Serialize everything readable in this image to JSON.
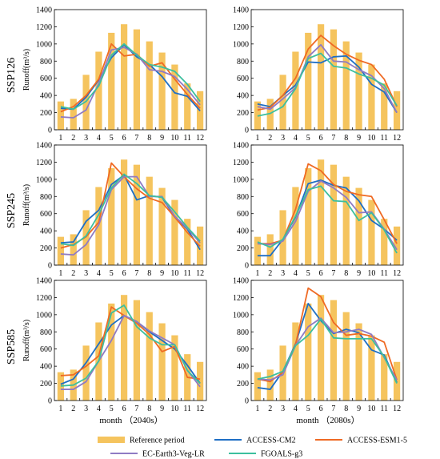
{
  "row_labels": [
    "SSP126",
    "SSP245",
    "SSP585"
  ],
  "ylabel": "Runoff(m³/s)",
  "xlabels": [
    "month  （2040s）",
    "month  （2080s）"
  ],
  "yticks": [
    "0",
    "200",
    "400",
    "600",
    "800",
    "1000",
    "1200",
    "1400"
  ],
  "xticks": [
    "1",
    "2",
    "3",
    "4",
    "5",
    "6",
    "7",
    "8",
    "9",
    "10",
    "11",
    "12"
  ],
  "legend": [
    "Reference period",
    "ACCESS-CM2",
    "ACCESS-ESM1-5",
    "EC-Earth3-Veg-LR",
    "FGOALS-g3"
  ],
  "colors": {
    "reference": "#f5c45e",
    "ACCESS-CM2": "#1f6fc5",
    "ACCESS-ESM1-5": "#ef6a24",
    "EC-Earth3-Veg-LR": "#8f7bc4",
    "FGOALS-g3": "#3dbf9e"
  },
  "chart_data": [
    {
      "type": "bar+line",
      "scenario": "SSP126",
      "period": "2040s",
      "ylim": [
        0,
        1400
      ],
      "categories": [
        1,
        2,
        3,
        4,
        5,
        6,
        7,
        8,
        9,
        10,
        11,
        12
      ],
      "bars": [
        330,
        360,
        640,
        910,
        1130,
        1230,
        1170,
        1030,
        900,
        760,
        540,
        450
      ],
      "series": [
        {
          "name": "ACCESS-CM2",
          "values": [
            250,
            240,
            380,
            580,
            840,
            990,
            850,
            760,
            620,
            430,
            390,
            220
          ]
        },
        {
          "name": "ACCESS-ESM1-5",
          "values": [
            210,
            270,
            400,
            590,
            1000,
            860,
            880,
            740,
            780,
            590,
            410,
            250
          ]
        },
        {
          "name": "EC-Earth3-Veg-LR",
          "values": [
            150,
            140,
            230,
            540,
            930,
            960,
            880,
            700,
            680,
            620,
            470,
            290
          ]
        },
        {
          "name": "FGOALS-g3",
          "values": [
            270,
            240,
            330,
            510,
            870,
            1000,
            870,
            760,
            730,
            680,
            530,
            330
          ]
        }
      ]
    },
    {
      "type": "bar+line",
      "scenario": "SSP126",
      "period": "2080s",
      "ylim": [
        0,
        1400
      ],
      "categories": [
        1,
        2,
        3,
        4,
        5,
        6,
        7,
        8,
        9,
        10,
        11,
        12
      ],
      "bars": [
        330,
        360,
        640,
        910,
        1130,
        1230,
        1170,
        1030,
        900,
        760,
        540,
        450
      ],
      "series": [
        {
          "name": "ACCESS-CM2",
          "values": [
            300,
            270,
            400,
            520,
            790,
            780,
            850,
            860,
            730,
            530,
            440,
            200
          ]
        },
        {
          "name": "ACCESS-ESM1-5",
          "values": [
            230,
            260,
            400,
            600,
            940,
            1100,
            980,
            880,
            810,
            760,
            590,
            270
          ]
        },
        {
          "name": "EC-Earth3-Veg-LR",
          "values": [
            270,
            240,
            360,
            490,
            850,
            990,
            800,
            790,
            700,
            630,
            480,
            200
          ]
        },
        {
          "name": "FGOALS-g3",
          "values": [
            160,
            190,
            270,
            480,
            830,
            890,
            740,
            720,
            650,
            600,
            520,
            280
          ]
        }
      ]
    },
    {
      "type": "bar+line",
      "scenario": "SSP245",
      "period": "2040s",
      "ylim": [
        0,
        1400
      ],
      "categories": [
        1,
        2,
        3,
        4,
        5,
        6,
        7,
        8,
        9,
        10,
        11,
        12
      ],
      "bars": [
        330,
        360,
        640,
        910,
        1130,
        1230,
        1170,
        1030,
        900,
        760,
        540,
        450
      ],
      "series": [
        {
          "name": "ACCESS-CM2",
          "values": [
            260,
            270,
            510,
            640,
            940,
            1050,
            760,
            810,
            790,
            560,
            420,
            180
          ]
        },
        {
          "name": "ACCESS-ESM1-5",
          "values": [
            200,
            240,
            330,
            500,
            1190,
            1030,
            890,
            780,
            730,
            560,
            380,
            220
          ]
        },
        {
          "name": "EC-Earth3-Veg-LR",
          "values": [
            130,
            120,
            240,
            470,
            880,
            1030,
            1030,
            800,
            800,
            570,
            430,
            260
          ]
        },
        {
          "name": "FGOALS-g3",
          "values": [
            250,
            230,
            340,
            590,
            900,
            1060,
            950,
            810,
            790,
            620,
            440,
            280
          ]
        }
      ]
    },
    {
      "type": "bar+line",
      "scenario": "SSP245",
      "period": "2080s",
      "ylim": [
        0,
        1400
      ],
      "categories": [
        1,
        2,
        3,
        4,
        5,
        6,
        7,
        8,
        9,
        10,
        11,
        12
      ],
      "bars": [
        330,
        360,
        640,
        910,
        1130,
        1230,
        1170,
        1030,
        900,
        760,
        540,
        450
      ],
      "series": [
        {
          "name": "ACCESS-CM2",
          "values": [
            110,
            110,
            300,
            560,
            950,
            990,
            930,
            900,
            750,
            520,
            420,
            290
          ]
        },
        {
          "name": "ACCESS-ESM1-5",
          "values": [
            250,
            250,
            290,
            650,
            1180,
            1100,
            940,
            860,
            820,
            800,
            530,
            250
          ]
        },
        {
          "name": "EC-Earth3-Veg-LR",
          "values": [
            250,
            240,
            280,
            510,
            860,
            980,
            900,
            790,
            610,
            620,
            420,
            180
          ]
        },
        {
          "name": "FGOALS-g3",
          "values": [
            270,
            210,
            300,
            570,
            880,
            920,
            750,
            740,
            520,
            610,
            410,
            140
          ]
        }
      ]
    },
    {
      "type": "bar+line",
      "scenario": "SSP585",
      "period": "2040s",
      "ylim": [
        0,
        1400
      ],
      "categories": [
        1,
        2,
        3,
        4,
        5,
        6,
        7,
        8,
        9,
        10,
        11,
        12
      ],
      "bars": [
        330,
        360,
        640,
        910,
        1130,
        1230,
        1170,
        1030,
        900,
        760,
        540,
        450
      ],
      "series": [
        {
          "name": "ACCESS-CM2",
          "values": [
            190,
            250,
            440,
            660,
            880,
            990,
            920,
            800,
            700,
            600,
            410,
            200
          ]
        },
        {
          "name": "ACCESS-ESM1-5",
          "values": [
            290,
            300,
            400,
            520,
            1090,
            990,
            900,
            770,
            570,
            630,
            270,
            250
          ]
        },
        {
          "name": "EC-Earth3-Veg-LR",
          "values": [
            130,
            130,
            220,
            460,
            700,
            990,
            920,
            810,
            730,
            650,
            350,
            160
          ]
        },
        {
          "name": "FGOALS-g3",
          "values": [
            170,
            180,
            260,
            460,
            1020,
            1110,
            860,
            730,
            650,
            650,
            350,
            200
          ]
        }
      ]
    },
    {
      "type": "bar+line",
      "scenario": "SSP585",
      "period": "2080s",
      "ylim": [
        0,
        1400
      ],
      "categories": [
        1,
        2,
        3,
        4,
        5,
        6,
        7,
        8,
        9,
        10,
        11,
        12
      ],
      "bars": [
        330,
        360,
        640,
        910,
        1130,
        1230,
        1170,
        1030,
        900,
        760,
        540,
        450
      ],
      "series": [
        {
          "name": "ACCESS-CM2",
          "values": [
            150,
            130,
            340,
            660,
            1130,
            930,
            780,
            830,
            790,
            590,
            530,
            210
          ]
        },
        {
          "name": "ACCESS-ESM1-5",
          "values": [
            250,
            220,
            330,
            650,
            1310,
            1210,
            910,
            760,
            780,
            750,
            680,
            240
          ]
        },
        {
          "name": "EC-Earth3-Veg-LR",
          "values": [
            250,
            240,
            300,
            640,
            860,
            960,
            790,
            800,
            830,
            770,
            500,
            240
          ]
        },
        {
          "name": "FGOALS-g3",
          "values": [
            250,
            280,
            340,
            640,
            760,
            950,
            730,
            720,
            720,
            720,
            510,
            200
          ]
        }
      ]
    }
  ]
}
